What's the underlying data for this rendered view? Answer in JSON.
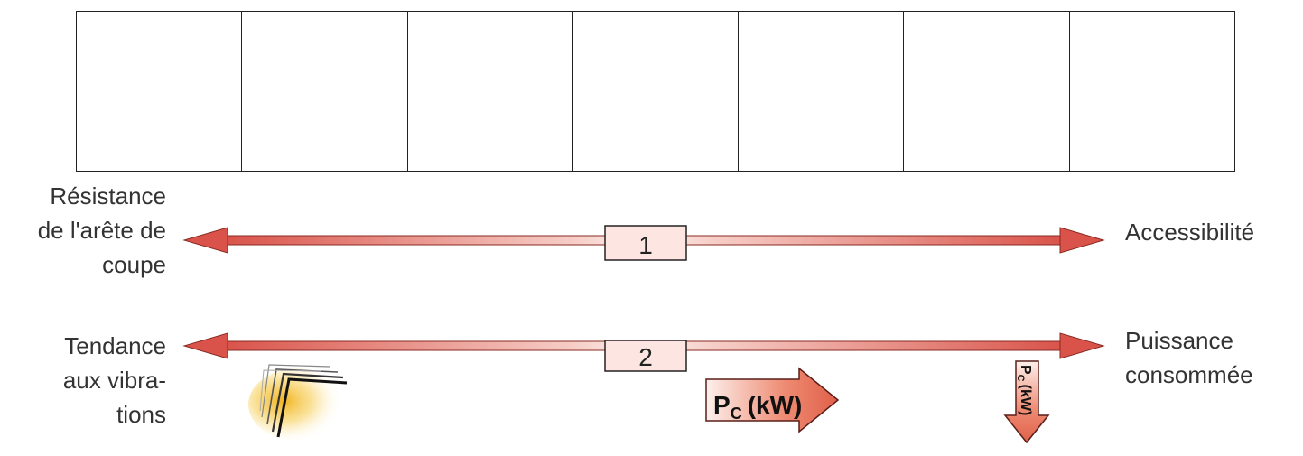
{
  "grid": {
    "columns": 7
  },
  "scales": [
    {
      "number": "1",
      "left_label": [
        "Résistance",
        "de l'arête de",
        "coupe"
      ],
      "right_label": [
        "Accessibilité"
      ]
    },
    {
      "number": "2",
      "left_label": [
        "Tendance",
        "aux vibra-",
        "tions"
      ],
      "right_label": [
        "Puissance",
        "consommée"
      ]
    }
  ],
  "power_arrows": {
    "large": {
      "main": "P",
      "sub": "C",
      "unit": "(kW)"
    },
    "small": {
      "main": "P",
      "sub": "C",
      "unit": "(kW)"
    }
  },
  "colors": {
    "arrow_red": "#d9534a",
    "arrow_light": "#fbe4e0",
    "vibration_yellow": "#f4c430"
  }
}
